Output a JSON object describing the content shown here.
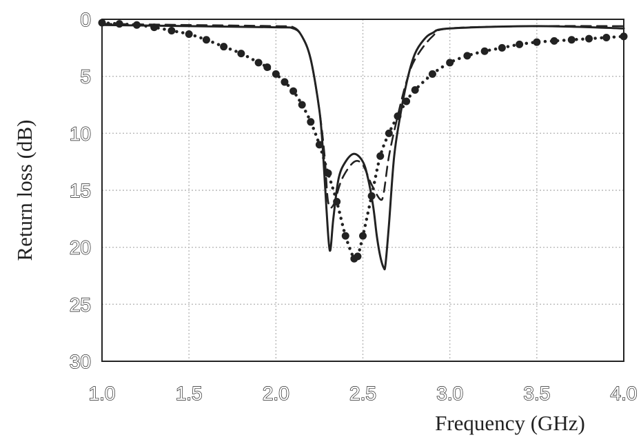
{
  "chart_data": {
    "type": "line",
    "title": "",
    "xlabel": "Frequency (GHz)",
    "ylabel": "Return loss (dB)",
    "xlim": [
      1.0,
      4.0
    ],
    "ylim": [
      0,
      30
    ],
    "y_inverted": true,
    "grid": true,
    "legend": "none",
    "x_ticks": [
      "1.0",
      "1.5",
      "2.0",
      "2.5",
      "3.0",
      "3.5",
      "4.0"
    ],
    "y_ticks": [
      "0",
      "5",
      "10",
      "15",
      "20",
      "25",
      "30"
    ],
    "colors": {
      "series": "#222222",
      "grid": "#b8b8b8",
      "axis": "#222222"
    },
    "series": [
      {
        "style": "solid",
        "x": [
          1.0,
          1.5,
          2.0,
          2.1,
          2.15,
          2.2,
          2.25,
          2.27,
          2.29,
          2.31,
          2.33,
          2.36,
          2.4,
          2.45,
          2.5,
          2.53,
          2.56,
          2.58,
          2.6,
          2.62,
          2.63,
          2.65,
          2.68,
          2.72,
          2.76,
          2.8,
          2.85,
          2.9,
          3.0,
          3.5,
          4.0
        ],
        "y": [
          0.5,
          0.6,
          0.7,
          0.8,
          1.5,
          3.5,
          8.0,
          11.5,
          16.5,
          20.3,
          17.5,
          14.0,
          12.5,
          11.8,
          12.5,
          14.0,
          16.5,
          19.0,
          20.8,
          21.8,
          21.5,
          18.0,
          12.0,
          8.0,
          5.0,
          3.0,
          1.8,
          1.2,
          0.8,
          0.6,
          0.8
        ]
      },
      {
        "style": "dashed",
        "x": [
          1.0,
          1.5,
          2.0,
          2.1,
          2.15,
          2.2,
          2.25,
          2.28,
          2.3,
          2.33,
          2.38,
          2.45,
          2.5,
          2.55,
          2.6,
          2.62,
          2.65,
          2.7,
          2.75,
          2.8,
          2.9,
          3.0,
          3.5,
          4.0
        ],
        "y": [
          0.4,
          0.5,
          0.6,
          0.7,
          1.5,
          3.5,
          8.0,
          12.0,
          16.0,
          16.3,
          14.0,
          12.5,
          12.8,
          14.5,
          15.8,
          15.2,
          12.0,
          8.5,
          5.5,
          3.5,
          1.5,
          0.8,
          0.6,
          0.6
        ]
      },
      {
        "style": "dotted-markers",
        "x": [
          1.0,
          1.1,
          1.2,
          1.3,
          1.4,
          1.5,
          1.6,
          1.7,
          1.8,
          1.9,
          1.95,
          2.0,
          2.05,
          2.1,
          2.15,
          2.2,
          2.25,
          2.3,
          2.35,
          2.4,
          2.45,
          2.47,
          2.5,
          2.55,
          2.6,
          2.65,
          2.7,
          2.75,
          2.8,
          2.9,
          3.0,
          3.1,
          3.2,
          3.3,
          3.4,
          3.5,
          3.6,
          3.7,
          3.8,
          3.9,
          4.0
        ],
        "y": [
          0.3,
          0.4,
          0.5,
          0.7,
          1.0,
          1.3,
          1.8,
          2.4,
          3.0,
          3.8,
          4.2,
          4.8,
          5.5,
          6.3,
          7.5,
          9.0,
          11.0,
          13.5,
          16.0,
          19.0,
          21.0,
          20.8,
          19.0,
          15.5,
          12.0,
          10.0,
          8.5,
          7.2,
          6.2,
          4.8,
          3.8,
          3.2,
          2.8,
          2.5,
          2.2,
          2.0,
          1.9,
          1.8,
          1.7,
          1.6,
          1.5
        ]
      }
    ]
  }
}
